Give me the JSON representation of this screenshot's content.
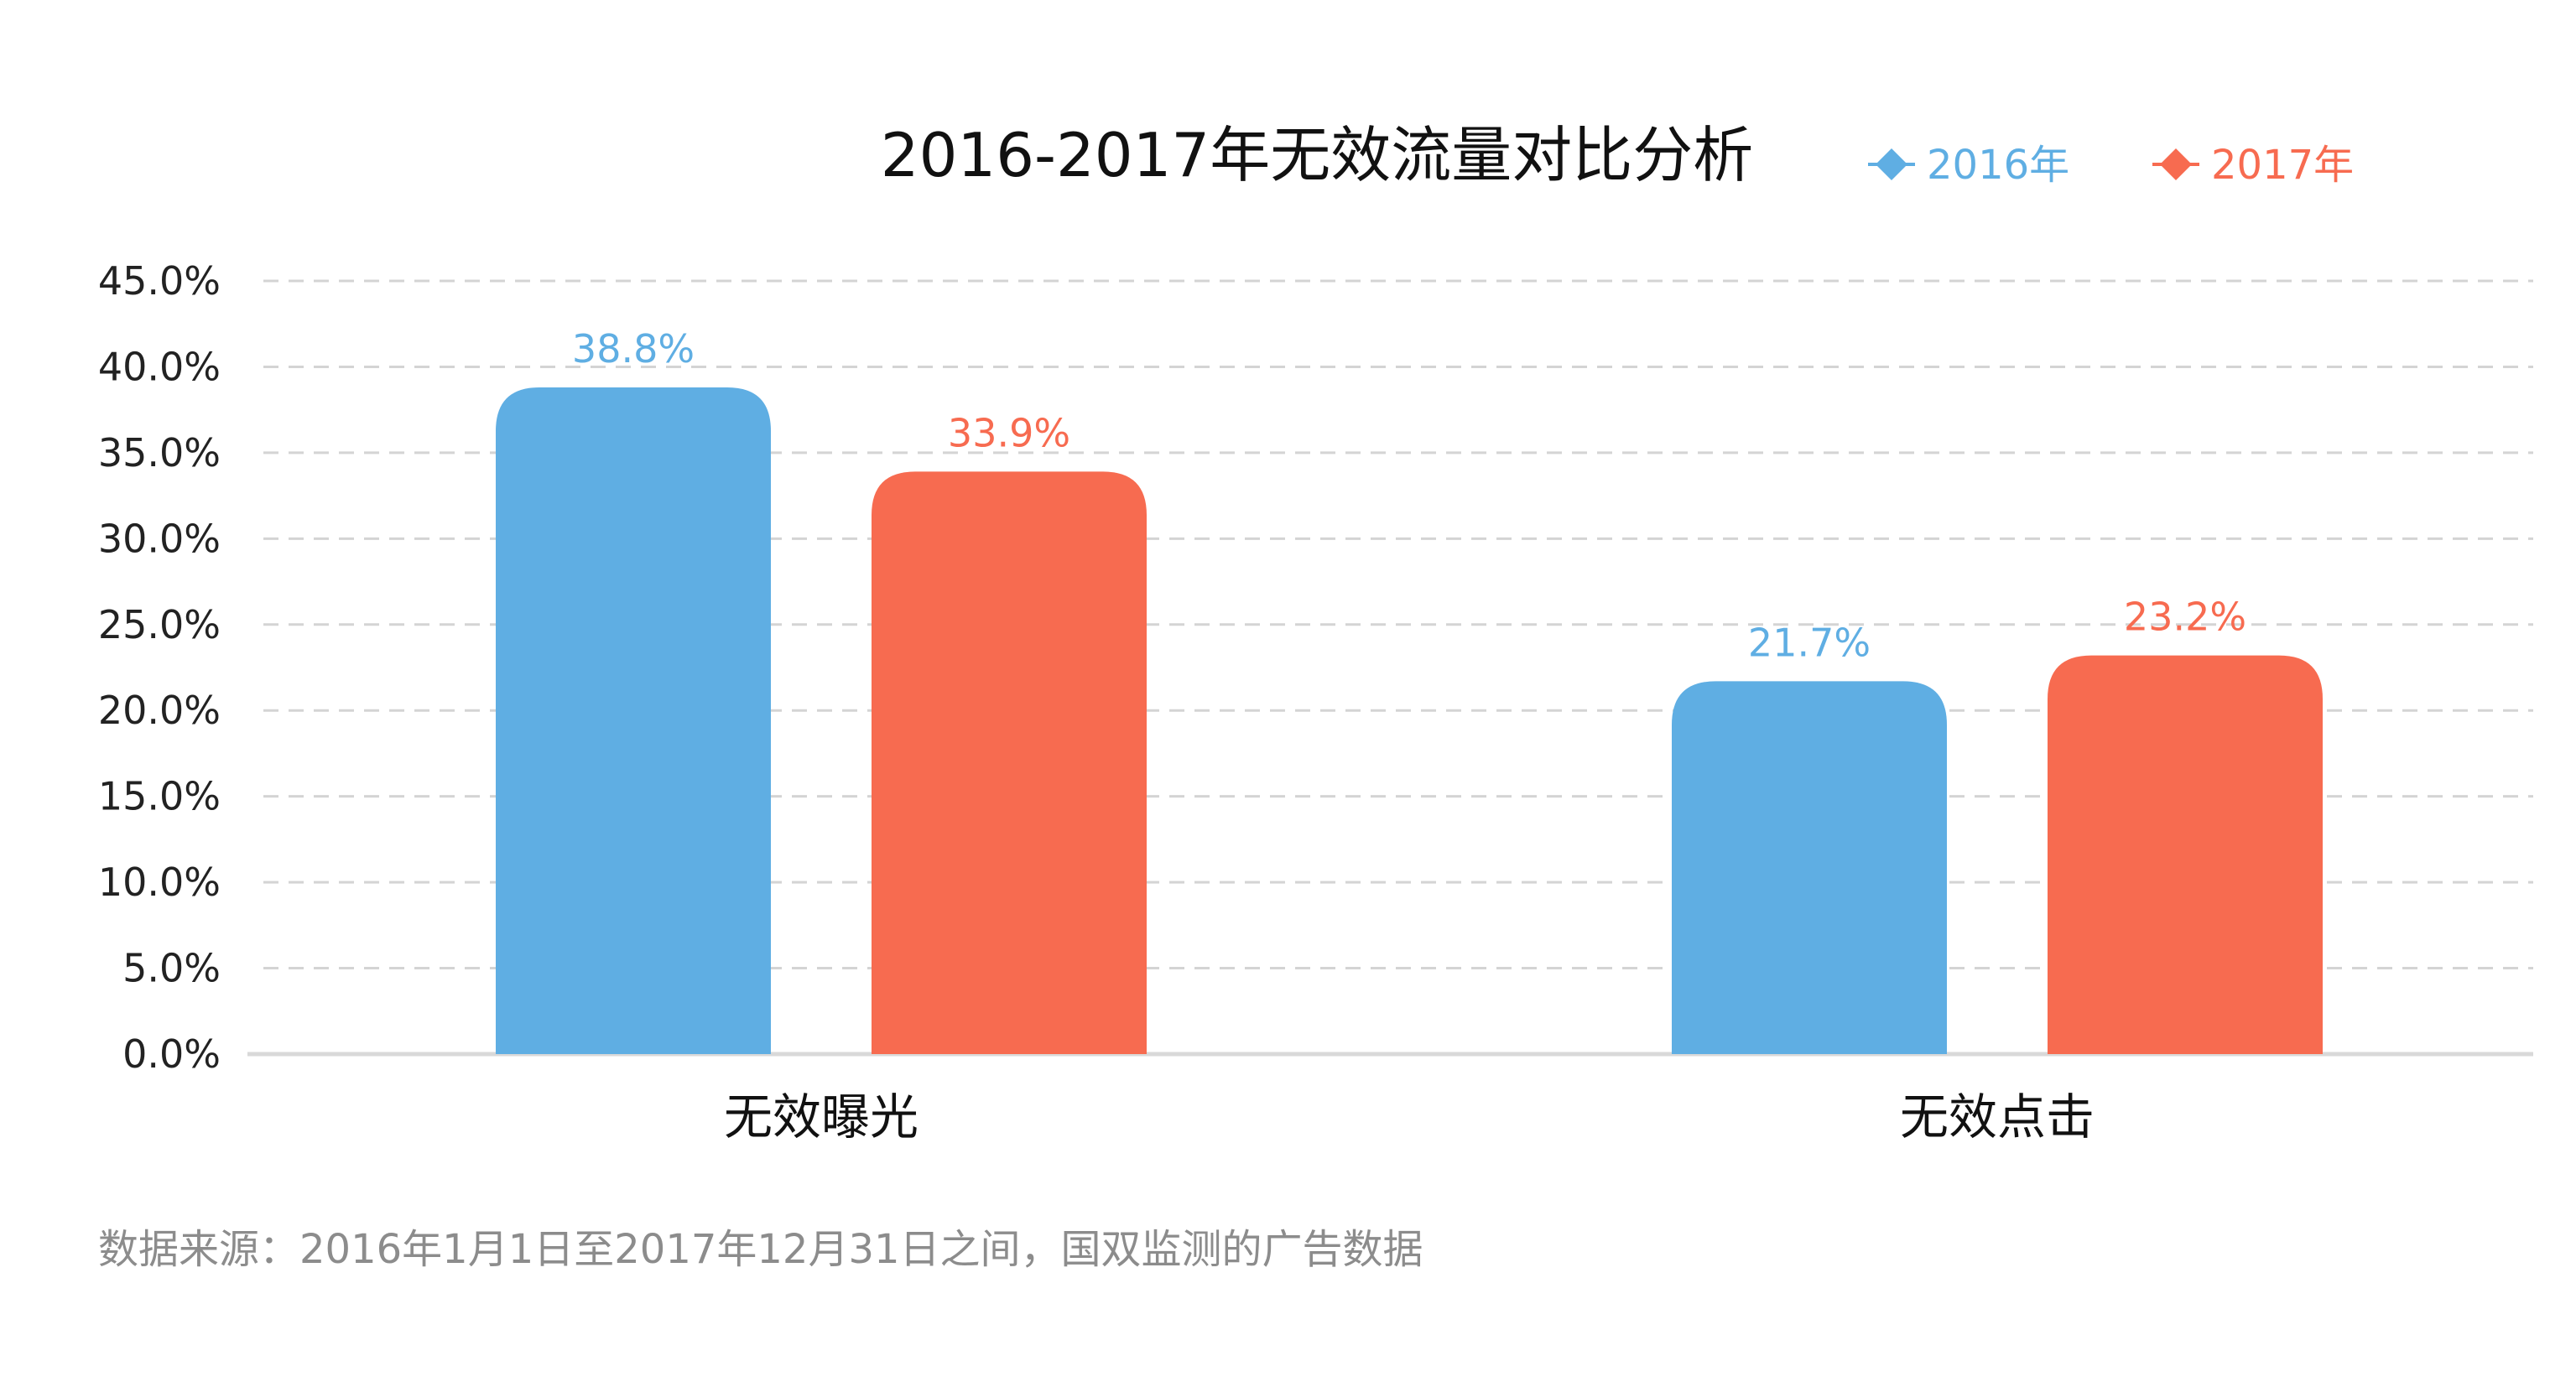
{
  "chart_data": {
    "type": "bar",
    "title": "2016-2017年无效流量对比分析",
    "categories": [
      "无效曝光",
      "无效点击"
    ],
    "series": [
      {
        "name": "2016年",
        "color": "#5faee3",
        "values": [
          38.8,
          21.7
        ],
        "labels": [
          "38.8%",
          "21.7%"
        ]
      },
      {
        "name": "2017年",
        "color": "#f76b50",
        "values": [
          33.9,
          23.2
        ],
        "labels": [
          "33.9%",
          "23.2%"
        ]
      }
    ],
    "ylim": [
      0,
      45
    ],
    "yticks": [
      0,
      5,
      10,
      15,
      20,
      25,
      30,
      35,
      40,
      45
    ],
    "ytick_labels": [
      "0.0%",
      "5.0%",
      "10.0%",
      "15.0%",
      "20.0%",
      "25.0%",
      "30.0%",
      "35.0%",
      "40.0%",
      "45.0%"
    ],
    "grid": true,
    "legend_position": "top-right",
    "xlabel": "",
    "ylabel": ""
  },
  "source_note": "数据来源：2016年1月1日至2017年12月31日之间，国双监测的广告数据"
}
